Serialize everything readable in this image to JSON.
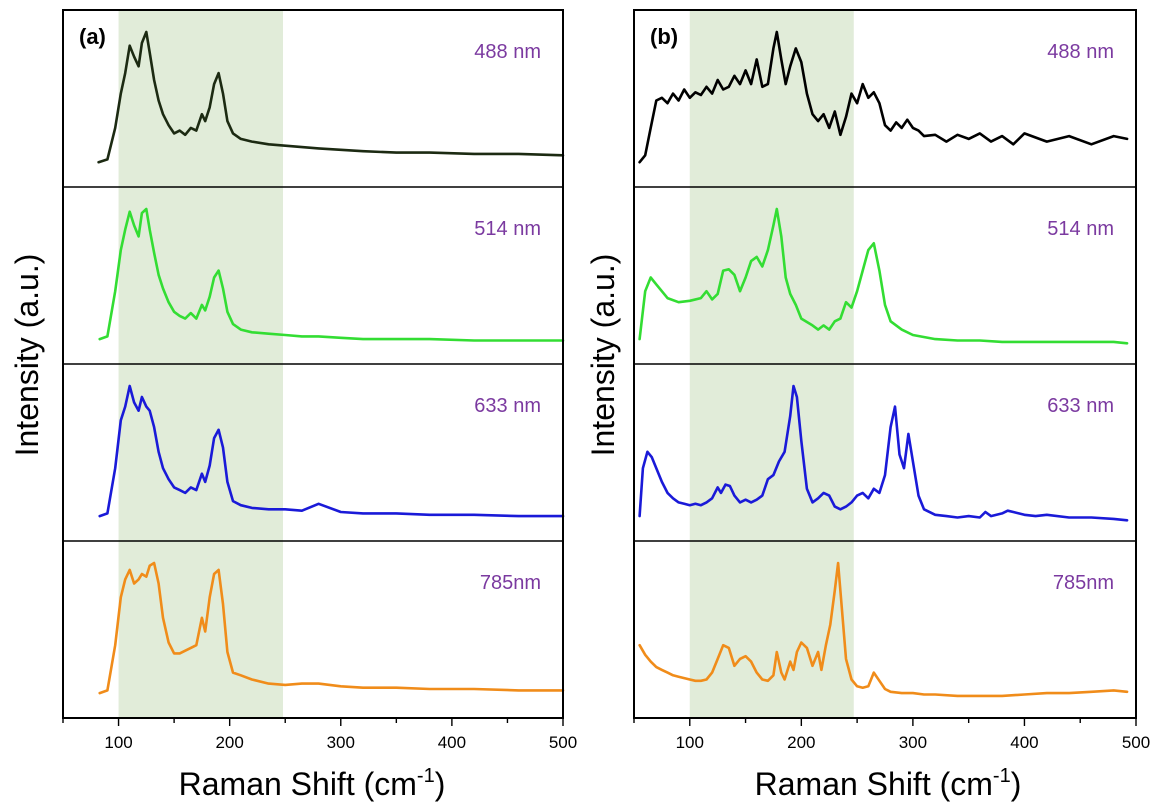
{
  "chart_data": [
    {
      "panel": "(a)",
      "type": "line",
      "xlabel": "Raman Shift (cm",
      "xlabel_sup": "-1",
      "xlabel_close": ")",
      "ylabel": "Intensity (a.u.)",
      "xlim": [
        50,
        500
      ],
      "xticks": [
        100,
        200,
        300,
        400,
        500
      ],
      "shaded_region": [
        100,
        248
      ],
      "series": [
        {
          "name": "488 nm",
          "color": "#1c2a12",
          "x": [
            82,
            90,
            97,
            102,
            106,
            110,
            114,
            118,
            121,
            125,
            128,
            132,
            136,
            140,
            145,
            150,
            155,
            160,
            165,
            170,
            175,
            178,
            182,
            186,
            190,
            194,
            198,
            203,
            210,
            220,
            235,
            250,
            265,
            280,
            300,
            320,
            350,
            380,
            420,
            460,
            500
          ],
          "y": [
            0.05,
            0.07,
            0.3,
            0.55,
            0.7,
            0.9,
            0.82,
            0.75,
            0.92,
            1.0,
            0.85,
            0.65,
            0.5,
            0.4,
            0.32,
            0.26,
            0.28,
            0.25,
            0.3,
            0.28,
            0.4,
            0.35,
            0.45,
            0.62,
            0.7,
            0.55,
            0.35,
            0.26,
            0.22,
            0.2,
            0.18,
            0.17,
            0.16,
            0.15,
            0.14,
            0.13,
            0.12,
            0.12,
            0.11,
            0.11,
            0.1
          ]
        },
        {
          "name": "514 nm",
          "color": "#33dd33",
          "x": [
            83,
            90,
            97,
            102,
            106,
            110,
            114,
            118,
            121,
            125,
            128,
            132,
            136,
            140,
            145,
            150,
            155,
            160,
            165,
            170,
            175,
            178,
            182,
            186,
            190,
            194,
            198,
            203,
            210,
            220,
            235,
            250,
            265,
            280,
            300,
            320,
            350,
            380,
            420,
            460,
            500
          ],
          "y": [
            0.05,
            0.07,
            0.4,
            0.7,
            0.85,
            0.98,
            0.88,
            0.8,
            0.97,
            1.0,
            0.85,
            0.68,
            0.52,
            0.42,
            0.32,
            0.25,
            0.22,
            0.2,
            0.24,
            0.2,
            0.3,
            0.26,
            0.36,
            0.5,
            0.55,
            0.42,
            0.25,
            0.16,
            0.12,
            0.1,
            0.09,
            0.08,
            0.07,
            0.07,
            0.06,
            0.05,
            0.05,
            0.05,
            0.04,
            0.04,
            0.04
          ]
        },
        {
          "name": "633 nm",
          "color": "#1a1ad8",
          "x": [
            83,
            90,
            97,
            102,
            106,
            110,
            114,
            118,
            121,
            125,
            128,
            132,
            136,
            140,
            145,
            150,
            155,
            160,
            165,
            170,
            175,
            178,
            182,
            186,
            190,
            194,
            198,
            203,
            210,
            220,
            235,
            250,
            265,
            280,
            300,
            320,
            350,
            380,
            420,
            460,
            500
          ],
          "y": [
            0.05,
            0.07,
            0.4,
            0.75,
            0.85,
            1.0,
            0.88,
            0.82,
            0.92,
            0.85,
            0.82,
            0.7,
            0.52,
            0.4,
            0.32,
            0.26,
            0.24,
            0.22,
            0.26,
            0.24,
            0.36,
            0.3,
            0.42,
            0.62,
            0.68,
            0.55,
            0.3,
            0.16,
            0.13,
            0.11,
            0.1,
            0.1,
            0.09,
            0.14,
            0.08,
            0.07,
            0.07,
            0.06,
            0.06,
            0.05,
            0.05
          ]
        },
        {
          "name": "785nm",
          "color": "#f08c1a",
          "x": [
            83,
            90,
            97,
            102,
            106,
            110,
            114,
            118,
            121,
            125,
            128,
            132,
            136,
            140,
            145,
            150,
            155,
            160,
            165,
            170,
            175,
            178,
            182,
            186,
            190,
            194,
            198,
            203,
            210,
            220,
            235,
            250,
            265,
            280,
            300,
            320,
            350,
            380,
            420,
            460,
            500
          ],
          "y": [
            0.05,
            0.07,
            0.4,
            0.75,
            0.88,
            0.95,
            0.85,
            0.88,
            0.92,
            0.9,
            0.98,
            1.0,
            0.85,
            0.6,
            0.42,
            0.34,
            0.34,
            0.36,
            0.38,
            0.4,
            0.6,
            0.5,
            0.75,
            0.92,
            0.95,
            0.7,
            0.35,
            0.2,
            0.18,
            0.15,
            0.12,
            0.11,
            0.12,
            0.12,
            0.1,
            0.09,
            0.09,
            0.08,
            0.08,
            0.07,
            0.07
          ]
        }
      ]
    },
    {
      "panel": "(b)",
      "type": "line",
      "xlabel": "Raman Shift (cm",
      "xlabel_sup": "-1",
      "xlabel_close": ")",
      "xlim": [
        50,
        500
      ],
      "xticks": [
        100,
        200,
        300,
        400,
        500
      ],
      "shaded_region": [
        100,
        247
      ],
      "series": [
        {
          "name": "488 nm",
          "color": "#000000",
          "x": [
            55,
            60,
            65,
            70,
            75,
            80,
            85,
            90,
            95,
            100,
            105,
            110,
            115,
            120,
            125,
            130,
            135,
            140,
            145,
            150,
            155,
            160,
            165,
            170,
            175,
            178,
            182,
            186,
            190,
            195,
            200,
            205,
            210,
            215,
            220,
            225,
            230,
            235,
            240,
            245,
            250,
            255,
            260,
            265,
            270,
            275,
            280,
            285,
            290,
            295,
            300,
            305,
            310,
            320,
            330,
            340,
            350,
            360,
            370,
            380,
            390,
            400,
            420,
            440,
            460,
            480,
            492
          ],
          "y": [
            0.05,
            0.1,
            0.3,
            0.5,
            0.52,
            0.48,
            0.55,
            0.5,
            0.58,
            0.52,
            0.56,
            0.54,
            0.6,
            0.55,
            0.65,
            0.58,
            0.6,
            0.68,
            0.62,
            0.72,
            0.62,
            0.8,
            0.6,
            0.62,
            0.88,
            1.0,
            0.8,
            0.62,
            0.75,
            0.88,
            0.78,
            0.55,
            0.4,
            0.35,
            0.4,
            0.3,
            0.42,
            0.25,
            0.38,
            0.55,
            0.48,
            0.62,
            0.52,
            0.56,
            0.48,
            0.32,
            0.28,
            0.34,
            0.3,
            0.36,
            0.3,
            0.28,
            0.24,
            0.25,
            0.2,
            0.25,
            0.22,
            0.26,
            0.2,
            0.24,
            0.18,
            0.26,
            0.2,
            0.24,
            0.18,
            0.24,
            0.22
          ]
        },
        {
          "name": "514 nm",
          "color": "#33dd33",
          "x": [
            55,
            60,
            65,
            70,
            80,
            90,
            100,
            110,
            115,
            120,
            125,
            130,
            135,
            140,
            145,
            150,
            155,
            160,
            165,
            170,
            175,
            178,
            182,
            186,
            190,
            195,
            200,
            210,
            215,
            220,
            225,
            230,
            235,
            240,
            245,
            250,
            255,
            260,
            265,
            270,
            275,
            280,
            290,
            300,
            320,
            340,
            360,
            380,
            400,
            420,
            440,
            460,
            480,
            492
          ],
          "y": [
            0.05,
            0.4,
            0.5,
            0.45,
            0.35,
            0.32,
            0.33,
            0.35,
            0.4,
            0.34,
            0.38,
            0.55,
            0.56,
            0.52,
            0.4,
            0.5,
            0.62,
            0.65,
            0.58,
            0.7,
            0.88,
            1.0,
            0.8,
            0.5,
            0.38,
            0.3,
            0.2,
            0.15,
            0.12,
            0.15,
            0.12,
            0.18,
            0.2,
            0.32,
            0.28,
            0.4,
            0.55,
            0.7,
            0.75,
            0.55,
            0.3,
            0.18,
            0.12,
            0.08,
            0.05,
            0.04,
            0.04,
            0.03,
            0.03,
            0.03,
            0.03,
            0.03,
            0.03,
            0.02
          ]
        },
        {
          "name": "633 nm",
          "color": "#1a1ad8",
          "x": [
            55,
            58,
            62,
            66,
            70,
            75,
            80,
            85,
            90,
            95,
            100,
            105,
            110,
            115,
            120,
            125,
            128,
            132,
            136,
            140,
            145,
            150,
            155,
            160,
            165,
            170,
            175,
            180,
            185,
            190,
            193,
            196,
            200,
            205,
            210,
            215,
            220,
            225,
            230,
            235,
            240,
            245,
            250,
            255,
            260,
            265,
            270,
            275,
            280,
            284,
            288,
            292,
            296,
            300,
            305,
            310,
            320,
            330,
            340,
            350,
            360,
            365,
            370,
            380,
            385,
            390,
            400,
            410,
            420,
            440,
            460,
            480,
            492
          ],
          "y": [
            0.05,
            0.4,
            0.52,
            0.48,
            0.4,
            0.3,
            0.22,
            0.18,
            0.15,
            0.14,
            0.13,
            0.14,
            0.13,
            0.15,
            0.18,
            0.26,
            0.22,
            0.28,
            0.27,
            0.2,
            0.15,
            0.17,
            0.15,
            0.17,
            0.2,
            0.32,
            0.35,
            0.45,
            0.52,
            0.78,
            1.0,
            0.92,
            0.6,
            0.25,
            0.15,
            0.18,
            0.22,
            0.2,
            0.12,
            0.1,
            0.12,
            0.15,
            0.2,
            0.22,
            0.18,
            0.25,
            0.22,
            0.35,
            0.7,
            0.85,
            0.5,
            0.4,
            0.65,
            0.45,
            0.2,
            0.1,
            0.06,
            0.05,
            0.04,
            0.05,
            0.04,
            0.08,
            0.05,
            0.07,
            0.09,
            0.08,
            0.06,
            0.05,
            0.06,
            0.04,
            0.04,
            0.03,
            0.02
          ]
        },
        {
          "name": "785nm",
          "color": "#f08c1a",
          "x": [
            55,
            60,
            65,
            70,
            75,
            80,
            85,
            90,
            95,
            100,
            105,
            110,
            115,
            120,
            125,
            130,
            135,
            140,
            145,
            150,
            155,
            160,
            165,
            170,
            175,
            178,
            182,
            185,
            190,
            193,
            196,
            200,
            205,
            210,
            215,
            218,
            222,
            226,
            230,
            233,
            236,
            240,
            245,
            250,
            255,
            260,
            265,
            270,
            275,
            280,
            290,
            300,
            310,
            320,
            340,
            360,
            380,
            400,
            420,
            440,
            460,
            480,
            492
          ],
          "y": [
            0.4,
            0.33,
            0.28,
            0.24,
            0.22,
            0.2,
            0.18,
            0.17,
            0.16,
            0.15,
            0.14,
            0.14,
            0.15,
            0.2,
            0.3,
            0.4,
            0.38,
            0.25,
            0.3,
            0.32,
            0.28,
            0.2,
            0.15,
            0.14,
            0.18,
            0.35,
            0.2,
            0.15,
            0.28,
            0.22,
            0.35,
            0.42,
            0.38,
            0.25,
            0.35,
            0.22,
            0.4,
            0.55,
            0.8,
            1.0,
            0.7,
            0.3,
            0.15,
            0.1,
            0.09,
            0.1,
            0.2,
            0.14,
            0.08,
            0.06,
            0.05,
            0.05,
            0.04,
            0.04,
            0.03,
            0.03,
            0.03,
            0.04,
            0.05,
            0.05,
            0.06,
            0.07,
            0.06
          ]
        }
      ]
    }
  ]
}
